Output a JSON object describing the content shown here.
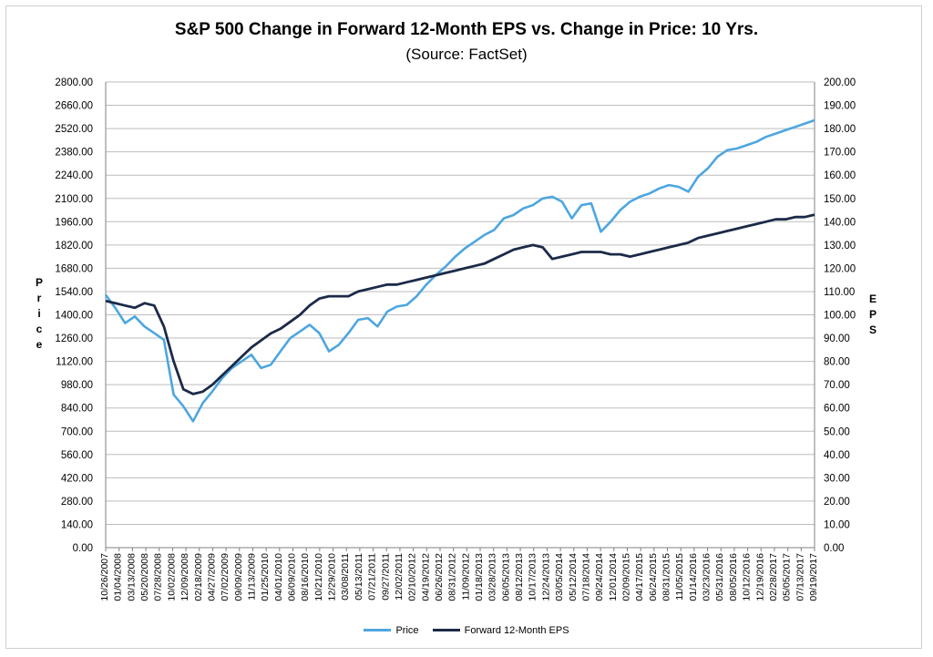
{
  "chart_data": {
    "type": "line",
    "title": "S&P 500 Change in Forward 12-Month EPS vs. Change in Price: 10 Yrs.",
    "subtitle": "(Source: FactSet)",
    "ylabel_left": "Price",
    "ylabel_right": "EPS",
    "ylim_left": [
      0,
      2800
    ],
    "ylim_right": [
      0,
      200
    ],
    "y_ticks_left": [
      "0.00",
      "140.00",
      "280.00",
      "420.00",
      "560.00",
      "700.00",
      "840.00",
      "980.00",
      "1120.00",
      "1260.00",
      "1400.00",
      "1540.00",
      "1680.00",
      "1820.00",
      "1960.00",
      "2100.00",
      "2240.00",
      "2380.00",
      "2520.00",
      "2660.00",
      "2800.00"
    ],
    "y_ticks_right": [
      "0.00",
      "10.00",
      "20.00",
      "30.00",
      "40.00",
      "50.00",
      "60.00",
      "70.00",
      "80.00",
      "90.00",
      "100.00",
      "110.00",
      "120.00",
      "130.00",
      "140.00",
      "150.00",
      "160.00",
      "170.00",
      "180.00",
      "190.00",
      "200.00"
    ],
    "x_ticks": [
      "10/26/2007",
      "01/04/2008",
      "03/13/2008",
      "05/20/2008",
      "07/28/2008",
      "10/02/2008",
      "12/09/2008",
      "02/18/2009",
      "04/27/2009",
      "07/02/2009",
      "09/09/2009",
      "11/13/2009",
      "01/25/2010",
      "04/01/2010",
      "06/09/2010",
      "08/16/2010",
      "10/21/2010",
      "12/29/2010",
      "03/08/2011",
      "05/13/2011",
      "07/21/2011",
      "09/27/2011",
      "12/02/2011",
      "02/10/2012",
      "04/19/2012",
      "06/26/2012",
      "08/31/2012",
      "11/09/2012",
      "01/18/2013",
      "03/28/2013",
      "06/05/2013",
      "08/12/2013",
      "10/17/2013",
      "12/24/2013",
      "03/05/2014",
      "05/12/2014",
      "07/18/2014",
      "09/24/2014",
      "12/01/2014",
      "02/09/2015",
      "04/17/2015",
      "06/24/2015",
      "08/31/2015",
      "11/05/2015",
      "01/14/2016",
      "03/23/2016",
      "05/31/2016",
      "08/05/2016",
      "10/12/2016",
      "12/19/2016",
      "02/28/2017",
      "05/05/2017",
      "07/13/2017",
      "09/19/2017"
    ],
    "grid": true,
    "legend_position": "bottom",
    "series": [
      {
        "name": "Price",
        "axis": "left",
        "color": "#4da6e0",
        "values": [
          1520,
          1440,
          1350,
          1390,
          1330,
          1290,
          1250,
          920,
          850,
          760,
          870,
          940,
          1020,
          1080,
          1120,
          1160,
          1080,
          1100,
          1180,
          1260,
          1300,
          1340,
          1290,
          1180,
          1220,
          1290,
          1370,
          1380,
          1330,
          1420,
          1450,
          1460,
          1510,
          1580,
          1640,
          1690,
          1750,
          1800,
          1840,
          1880,
          1910,
          1980,
          2000,
          2040,
          2060,
          2100,
          2110,
          2080,
          1980,
          2060,
          2070,
          1900,
          1960,
          2030,
          2080,
          2110,
          2130,
          2160,
          2180,
          2170,
          2140,
          2230,
          2280,
          2350,
          2390,
          2400,
          2420,
          2440,
          2470,
          2490,
          2510,
          2530,
          2550,
          2570
        ]
      },
      {
        "name": "Forward 12-Month EPS",
        "axis": "right",
        "color": "#1c2a48",
        "values": [
          106,
          105,
          104,
          103,
          105,
          104,
          95,
          80,
          68,
          66,
          67,
          70,
          74,
          78,
          82,
          86,
          89,
          92,
          94,
          97,
          100,
          104,
          107,
          108,
          108,
          108,
          110,
          111,
          112,
          113,
          113,
          114,
          115,
          116,
          117,
          118,
          119,
          120,
          121,
          122,
          124,
          126,
          128,
          129,
          130,
          129,
          124,
          125,
          126,
          127,
          127,
          127,
          126,
          126,
          125,
          126,
          127,
          128,
          129,
          130,
          131,
          133,
          134,
          135,
          136,
          137,
          138,
          139,
          140,
          141,
          141,
          142,
          142,
          143
        ]
      }
    ]
  }
}
